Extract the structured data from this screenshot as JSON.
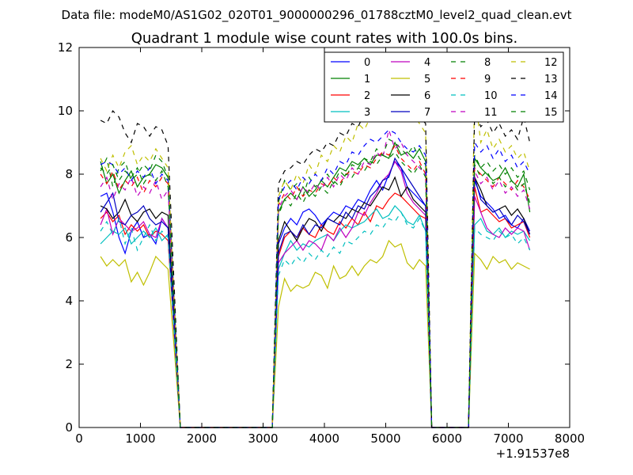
{
  "suptitle": "Data file: modeM0/AS1G02_020T01_9000000296_01788cztM0_level2_quad_clean.evt",
  "chart_data": {
    "type": "line",
    "title": "Quadrant 1 module wise count rates with 100.0s bins.",
    "xlabel": "",
    "ylabel": "",
    "x_offset_label": "+1.91537e8",
    "xlim": [
      0,
      8000
    ],
    "ylim": [
      0,
      12
    ],
    "xticks": [
      0,
      1000,
      2000,
      3000,
      4000,
      5000,
      6000,
      7000,
      8000
    ],
    "xtick_labels": [
      "0",
      "1000",
      "2000",
      "3000",
      "4000",
      "5000",
      "6000",
      "7000",
      "8000"
    ],
    "yticks": [
      0,
      2,
      4,
      6,
      8,
      10,
      12
    ],
    "ytick_labels": [
      "0",
      "2",
      "4",
      "6",
      "8",
      "10",
      "12"
    ],
    "grid": false,
    "legend_position": "top-right",
    "legend_columns": 4,
    "segments": [
      {
        "start": 350,
        "n": 12
      },
      {
        "start": 3250,
        "n": 25
      },
      {
        "start": 6450,
        "n": 10
      }
    ],
    "drops": [
      {
        "from": 1550,
        "to": 1650
      },
      {
        "from": 3150,
        "to": 3250
      },
      {
        "from": 5650,
        "to": 5750
      },
      {
        "from": 6350,
        "to": 6450
      }
    ],
    "series": [
      {
        "name": "0",
        "color": "#0000ff",
        "dash": "solid",
        "values": [
          7.3,
          7.4,
          6.8,
          6.0,
          5.5,
          6.2,
          6.5,
          6.0,
          6.1,
          5.8,
          6.6,
          6.3,
          5.8,
          6.3,
          6.6,
          6.4,
          6.8,
          6.9,
          6.7,
          6.4,
          6.6,
          6.8,
          6.7,
          7.0,
          6.9,
          7.2,
          7.1,
          7.5,
          7.8,
          7.5,
          8.0,
          8.4,
          8.2,
          7.6,
          7.4,
          7.2,
          7.0,
          7.8,
          7.3,
          7.1,
          6.9,
          6.6,
          6.7,
          6.4,
          6.3,
          6.6,
          6.2
        ]
      },
      {
        "name": "1",
        "color": "#008000",
        "dash": "solid",
        "values": [
          8.4,
          7.7,
          8.0,
          7.4,
          7.8,
          8.1,
          7.6,
          7.9,
          8.0,
          8.3,
          8.2,
          7.9,
          6.8,
          7.2,
          7.4,
          7.2,
          7.6,
          7.3,
          7.5,
          7.8,
          7.6,
          7.9,
          8.2,
          8.1,
          8.4,
          8.3,
          8.5,
          8.3,
          8.6,
          8.6,
          8.5,
          9.0,
          8.6,
          8.7,
          8.5,
          8.8,
          8.4,
          8.5,
          8.2,
          8.0,
          7.8,
          7.9,
          8.2,
          7.8,
          7.6,
          8.0,
          6.8
        ]
      },
      {
        "name": "2",
        "color": "#ff0000",
        "dash": "solid",
        "values": [
          6.6,
          6.8,
          6.5,
          6.7,
          6.1,
          6.4,
          6.2,
          6.4,
          6.0,
          6.2,
          6.1,
          5.9,
          5.4,
          6.0,
          6.2,
          6.0,
          6.3,
          6.1,
          6.0,
          6.4,
          6.2,
          6.1,
          6.5,
          6.3,
          6.6,
          6.4,
          6.8,
          6.5,
          7.0,
          6.9,
          7.2,
          7.4,
          7.3,
          7.1,
          6.9,
          6.7,
          6.6,
          7.6,
          6.8,
          6.9,
          6.7,
          6.5,
          6.6,
          6.3,
          6.4,
          6.5,
          6.0
        ]
      },
      {
        "name": "3",
        "color": "#00bfbf",
        "dash": "solid",
        "values": [
          5.8,
          6.0,
          6.2,
          6.1,
          6.3,
          5.8,
          6.0,
          6.2,
          6.0,
          6.3,
          5.9,
          6.1,
          5.0,
          5.5,
          5.9,
          5.6,
          5.8,
          5.7,
          5.9,
          6.0,
          6.1,
          5.9,
          6.2,
          6.4,
          6.3,
          6.4,
          6.5,
          6.7,
          6.9,
          6.6,
          6.7,
          7.0,
          6.8,
          6.5,
          6.4,
          6.7,
          6.2,
          6.4,
          6.6,
          6.2,
          6.1,
          6.3,
          6.0,
          6.2,
          6.1,
          6.2,
          5.9
        ]
      },
      {
        "name": "4",
        "color": "#bf00bf",
        "dash": "solid",
        "values": [
          6.4,
          6.9,
          6.1,
          6.6,
          6.4,
          6.2,
          6.3,
          6.5,
          6.1,
          6.0,
          6.6,
          6.3,
          5.2,
          5.5,
          5.7,
          5.9,
          5.6,
          5.9,
          5.8,
          5.6,
          6.1,
          5.9,
          6.3,
          6.0,
          6.3,
          6.8,
          6.7,
          7.1,
          7.4,
          7.8,
          8.0,
          8.4,
          8.1,
          7.4,
          7.1,
          6.9,
          6.7,
          7.3,
          6.8,
          6.3,
          6.1,
          6.0,
          6.3,
          6.1,
          6.3,
          6.2,
          5.6
        ]
      },
      {
        "name": "5",
        "color": "#bfbf00",
        "dash": "solid",
        "values": [
          5.4,
          5.1,
          5.3,
          5.1,
          5.3,
          4.6,
          4.9,
          4.5,
          4.9,
          5.4,
          5.2,
          5.0,
          3.8,
          4.7,
          4.3,
          4.5,
          4.4,
          4.5,
          4.9,
          4.8,
          4.4,
          5.1,
          4.7,
          4.8,
          5.1,
          4.8,
          5.1,
          5.3,
          5.2,
          5.4,
          5.9,
          5.7,
          5.8,
          5.2,
          5.0,
          5.3,
          5.1,
          5.5,
          5.3,
          5.0,
          5.4,
          5.2,
          5.3,
          5.0,
          5.2,
          5.1,
          5.0
        ]
      },
      {
        "name": "6",
        "color": "#000000",
        "dash": "solid",
        "values": [
          7.0,
          6.9,
          6.6,
          6.8,
          7.2,
          6.7,
          6.5,
          6.8,
          6.9,
          6.6,
          6.8,
          6.7,
          5.9,
          6.5,
          6.2,
          5.9,
          6.3,
          6.6,
          6.5,
          6.2,
          6.6,
          6.5,
          6.7,
          6.6,
          6.9,
          6.8,
          7.1,
          7.0,
          7.3,
          7.6,
          7.5,
          7.9,
          7.3,
          7.6,
          7.2,
          7.0,
          6.8,
          7.9,
          7.5,
          7.0,
          6.8,
          6.9,
          7.0,
          6.7,
          6.9,
          6.6,
          6.1
        ]
      },
      {
        "name": "7",
        "color": "#0000bf",
        "dash": "solid",
        "values": [
          6.8,
          7.1,
          7.4,
          6.5,
          6.4,
          6.7,
          6.8,
          7.0,
          6.6,
          6.4,
          6.5,
          6.3,
          5.5,
          6.1,
          6.2,
          6.0,
          6.4,
          6.1,
          6.4,
          6.3,
          6.6,
          6.5,
          6.4,
          6.8,
          6.6,
          7.0,
          6.9,
          7.3,
          7.5,
          7.8,
          7.9,
          8.5,
          8.2,
          7.9,
          7.6,
          7.3,
          7.0,
          7.9,
          7.2,
          7.0,
          6.8,
          6.9,
          6.6,
          6.4,
          6.7,
          6.5,
          6.1
        ]
      },
      {
        "name": "8",
        "color": "#008000",
        "dash": "dashed",
        "values": [
          8.1,
          8.5,
          7.6,
          8.2,
          8.4,
          7.8,
          8.0,
          8.3,
          8.1,
          8.6,
          8.4,
          7.9,
          7.1,
          7.8,
          7.5,
          7.7,
          7.3,
          7.9,
          7.6,
          7.8,
          8.0,
          7.7,
          8.1,
          7.9,
          8.3,
          8.2,
          8.5,
          8.4,
          8.8,
          8.6,
          9.1,
          9.0,
          8.8,
          8.6,
          8.9,
          8.5,
          8.3,
          8.6,
          8.2,
          8.4,
          8.1,
          8.3,
          8.0,
          8.2,
          7.9,
          8.1,
          7.5
        ]
      },
      {
        "name": "9",
        "color": "#ff0000",
        "dash": "dashed",
        "values": [
          8.0,
          7.7,
          8.1,
          7.5,
          7.8,
          7.6,
          7.9,
          7.4,
          7.8,
          7.6,
          7.9,
          7.7,
          7.0,
          7.4,
          7.2,
          7.6,
          7.3,
          7.5,
          7.4,
          7.7,
          7.6,
          7.9,
          7.7,
          8.0,
          8.1,
          8.0,
          8.3,
          8.2,
          8.5,
          8.7,
          8.6,
          8.9,
          8.5,
          8.3,
          8.1,
          8.4,
          8.0,
          8.2,
          8.0,
          7.8,
          7.6,
          7.9,
          7.7,
          7.5,
          7.8,
          7.6,
          7.2
        ]
      },
      {
        "name": "10",
        "color": "#00bfbf",
        "dash": "dashed",
        "values": [
          6.2,
          6.5,
          6.1,
          6.6,
          5.8,
          6.3,
          5.6,
          6.0,
          6.4,
          5.9,
          6.2,
          6.0,
          4.8,
          5.3,
          5.1,
          5.4,
          5.2,
          5.5,
          5.3,
          5.6,
          5.4,
          5.7,
          5.5,
          5.9,
          5.8,
          6.0,
          6.2,
          6.1,
          6.4,
          6.3,
          6.6,
          6.5,
          6.8,
          6.4,
          6.3,
          6.6,
          6.2,
          6.3,
          6.1,
          6.0,
          5.9,
          6.2,
          6.0,
          6.1,
          5.8,
          6.0,
          5.6
        ]
      },
      {
        "name": "11",
        "color": "#bf00bf",
        "dash": "dashed",
        "values": [
          7.6,
          7.9,
          7.2,
          7.7,
          7.5,
          7.9,
          7.3,
          7.6,
          7.4,
          7.8,
          7.2,
          7.5,
          6.9,
          7.3,
          7.5,
          7.2,
          7.6,
          7.4,
          7.7,
          7.5,
          7.9,
          7.6,
          8.0,
          7.8,
          8.2,
          8.0,
          8.4,
          8.3,
          8.7,
          8.5,
          9.4,
          8.8,
          9.0,
          8.6,
          8.4,
          8.2,
          8.0,
          8.1,
          7.7,
          7.9,
          7.5,
          7.8,
          7.4,
          7.6,
          7.3,
          7.5,
          6.9
        ]
      },
      {
        "name": "12",
        "color": "#bfbf00",
        "dash": "dashed",
        "values": [
          8.5,
          8.1,
          8.6,
          8.2,
          8.7,
          8.9,
          8.3,
          8.6,
          8.4,
          8.8,
          8.5,
          8.2,
          7.3,
          7.8,
          7.5,
          8.0,
          7.7,
          8.3,
          8.0,
          8.6,
          8.4,
          8.9,
          8.7,
          9.2,
          9.0,
          9.6,
          9.4,
          9.8,
          9.9,
          10.2,
          10.5,
          10.3,
          10.8,
          10.4,
          9.9,
          9.6,
          9.3,
          10.6,
          9.0,
          9.4,
          8.8,
          9.1,
          8.7,
          8.9,
          8.5,
          8.7,
          8.1
        ]
      },
      {
        "name": "13",
        "color": "#000000",
        "dash": "dashed",
        "values": [
          9.7,
          9.6,
          10.0,
          9.8,
          9.3,
          9.0,
          9.6,
          9.5,
          9.2,
          9.5,
          9.4,
          8.9,
          7.7,
          8.1,
          8.2,
          8.4,
          8.3,
          8.6,
          8.8,
          8.7,
          9.0,
          8.9,
          9.3,
          9.2,
          9.6,
          9.5,
          9.9,
          9.8,
          10.2,
          10.0,
          10.4,
          10.9,
          10.5,
          10.2,
          10.0,
          9.8,
          9.6,
          10.0,
          9.5,
          9.7,
          9.3,
          9.6,
          9.2,
          9.4,
          9.1,
          9.8,
          9.0
        ]
      },
      {
        "name": "14",
        "color": "#0000ff",
        "dash": "dashed",
        "values": [
          8.3,
          8.4,
          8.3,
          8.0,
          8.2,
          7.8,
          8.1,
          7.9,
          8.2,
          7.7,
          8.0,
          7.8,
          7.2,
          7.6,
          7.8,
          7.5,
          7.9,
          7.7,
          8.0,
          7.8,
          8.2,
          8.0,
          8.4,
          8.3,
          8.7,
          8.6,
          8.9,
          9.1,
          9.0,
          9.2,
          9.4,
          9.3,
          9.0,
          8.8,
          8.7,
          8.9,
          8.6,
          9.0,
          8.7,
          8.9,
          8.5,
          8.8,
          8.4,
          8.6,
          8.2,
          8.4,
          8.0
        ]
      },
      {
        "name": "15",
        "color": "#008000",
        "dash": "dashed",
        "values": [
          8.2,
          8.0,
          8.3,
          7.8,
          8.1,
          7.9,
          8.2,
          7.7,
          8.0,
          7.8,
          8.1,
          7.6,
          6.7,
          7.2,
          7.0,
          7.4,
          7.1,
          7.5,
          7.3,
          7.6,
          7.4,
          7.8,
          7.6,
          8.0,
          7.9,
          8.2,
          8.1,
          8.4,
          8.3,
          8.6,
          8.5,
          8.7,
          8.4,
          8.2,
          8.0,
          8.3,
          7.9,
          8.3,
          7.9,
          8.1,
          7.7,
          7.9,
          7.6,
          7.8,
          7.5,
          7.7,
          7.1
        ]
      }
    ]
  }
}
